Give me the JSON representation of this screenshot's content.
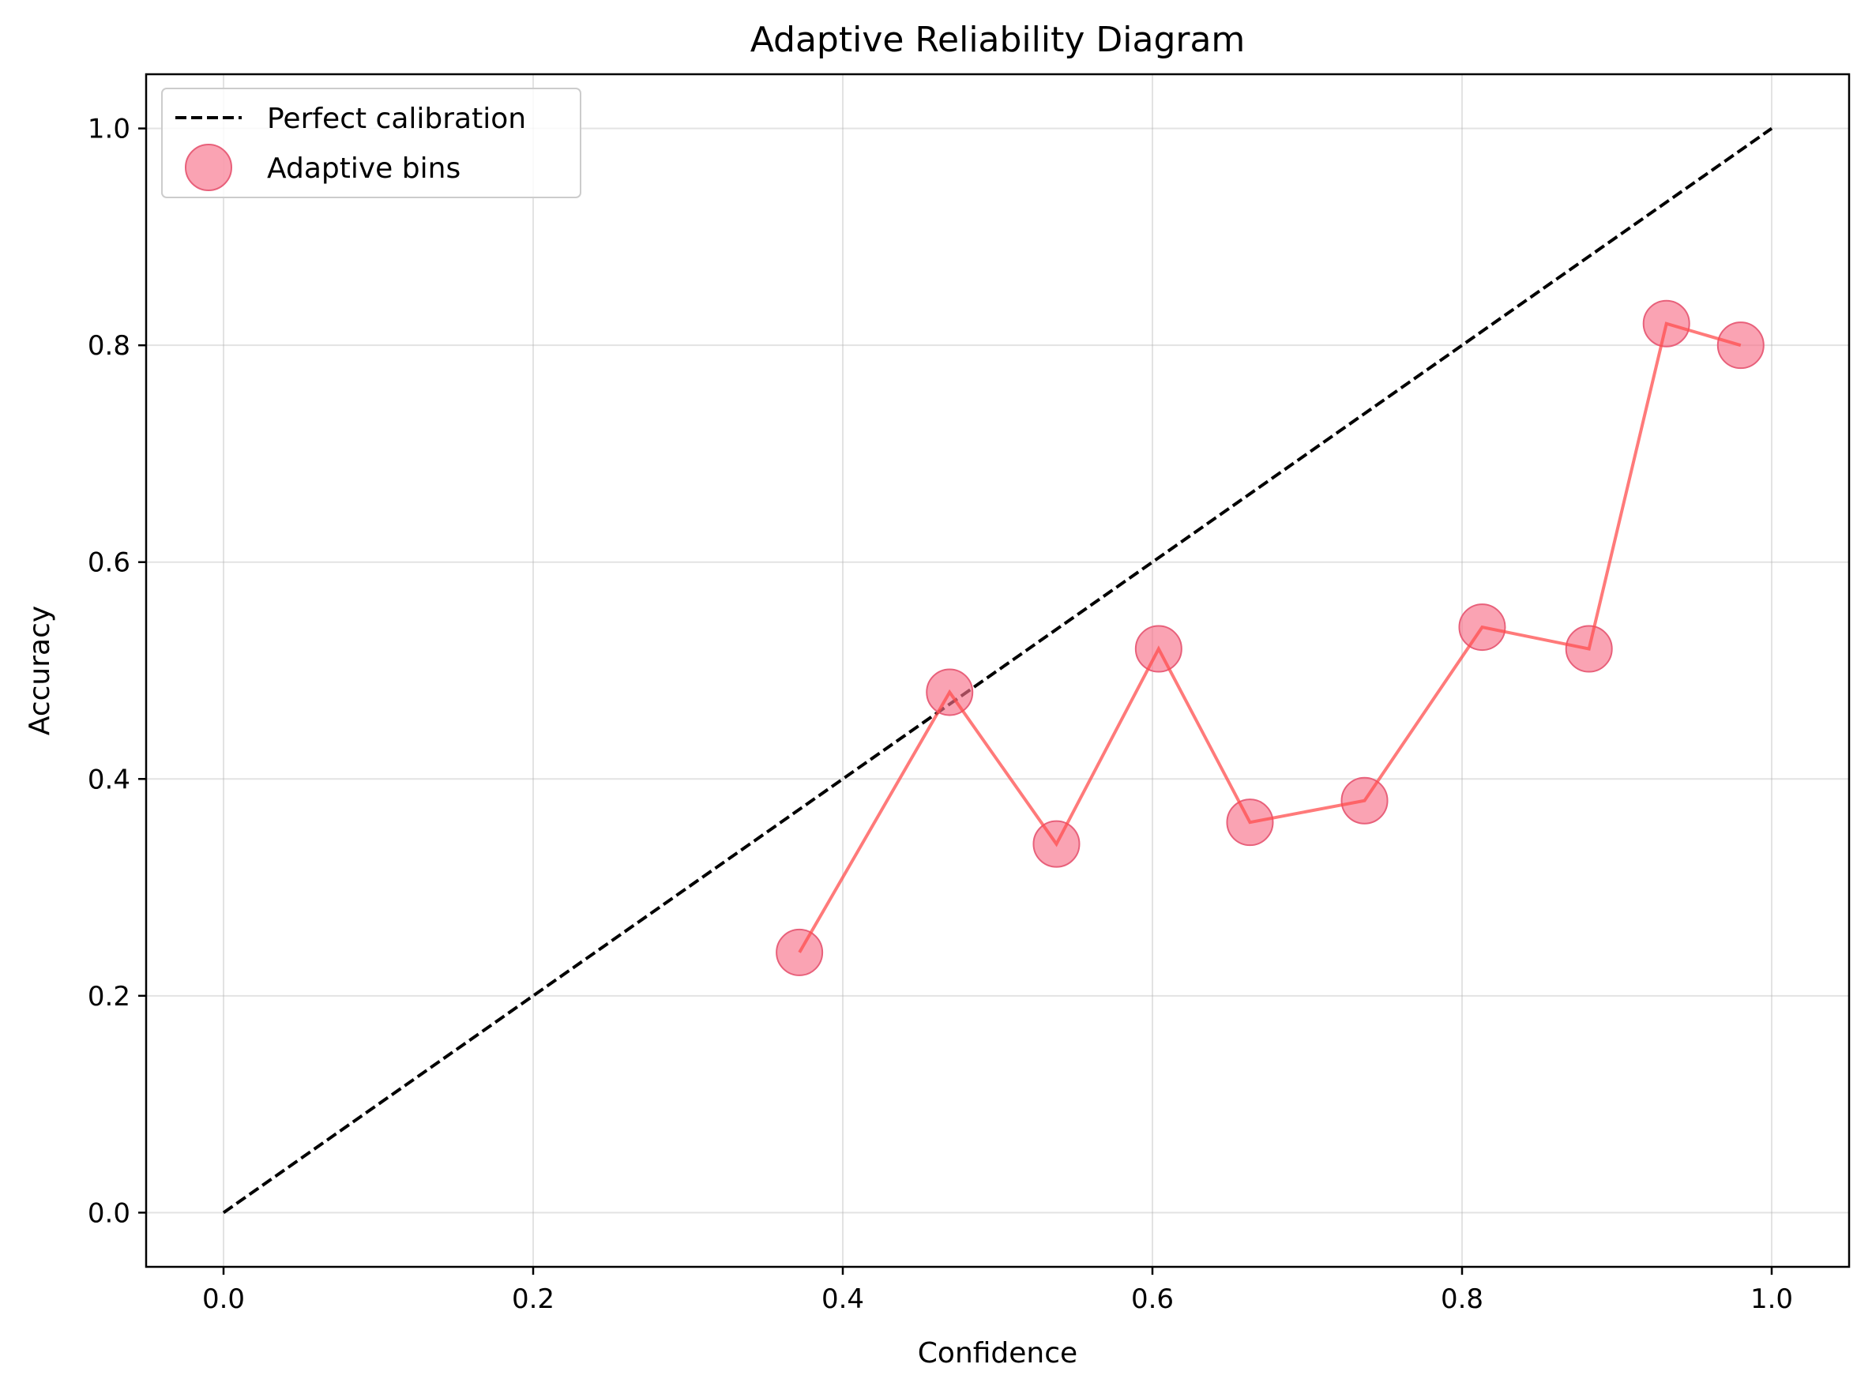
{
  "chart_data": {
    "type": "scatter",
    "title": "Adaptive Reliability Diagram",
    "xlabel": "Confidence",
    "ylabel": "Accuracy",
    "xlim": [
      -0.05,
      1.05
    ],
    "ylim": [
      -0.05,
      1.05
    ],
    "xticks": [
      "0.0",
      "0.2",
      "0.4",
      "0.6",
      "0.8",
      "1.0"
    ],
    "yticks": [
      "0.0",
      "0.2",
      "0.4",
      "0.6",
      "0.8",
      "1.0"
    ],
    "grid": true,
    "legend_position": "upper-left",
    "series": [
      {
        "name": "Perfect calibration",
        "style": "dashed-line",
        "color": "#000000",
        "x": [
          0.0,
          1.0
        ],
        "y": [
          0.0,
          1.0
        ]
      },
      {
        "name": "Adaptive bins",
        "style": "markers-with-line",
        "marker_color": "#f7728a",
        "line_color": "#ff4d4d",
        "x": [
          0.372,
          0.469,
          0.538,
          0.604,
          0.663,
          0.737,
          0.813,
          0.882,
          0.932,
          0.98
        ],
        "y": [
          0.24,
          0.48,
          0.34,
          0.52,
          0.36,
          0.38,
          0.54,
          0.52,
          0.82,
          0.8
        ]
      }
    ]
  }
}
